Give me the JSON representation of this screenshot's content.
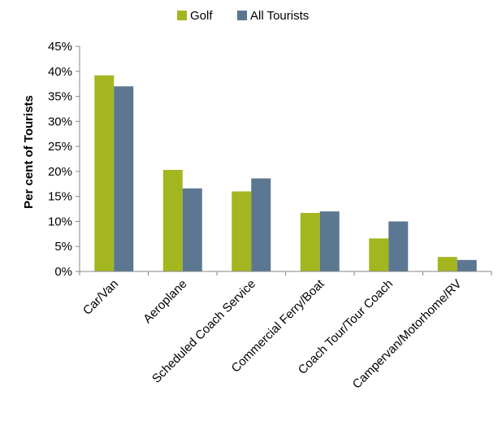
{
  "chart_data": {
    "type": "bar",
    "title": "",
    "xlabel": "",
    "ylabel": "Per cent of Tourists",
    "ylim": [
      0,
      45
    ],
    "yticks": [
      "0%",
      "5%",
      "10%",
      "15%",
      "20%",
      "25%",
      "30%",
      "35%",
      "40%",
      "45%"
    ],
    "grid": false,
    "legend_position": "top",
    "categories": [
      "Car/Van",
      "Aeroplane",
      "Scheduled Coach Service",
      "Commercial Ferry/Boat",
      "Coach Tour/Tour Coach",
      "Campervan/Motorhome/RV"
    ],
    "series": [
      {
        "name": "Golf",
        "color": "#a3b61f",
        "values": [
          39.2,
          20.3,
          16.0,
          11.7,
          6.6,
          2.9
        ]
      },
      {
        "name": "All Tourists",
        "color": "#5b7791",
        "values": [
          37.0,
          16.6,
          18.6,
          12.0,
          10.0,
          2.3
        ]
      }
    ]
  }
}
